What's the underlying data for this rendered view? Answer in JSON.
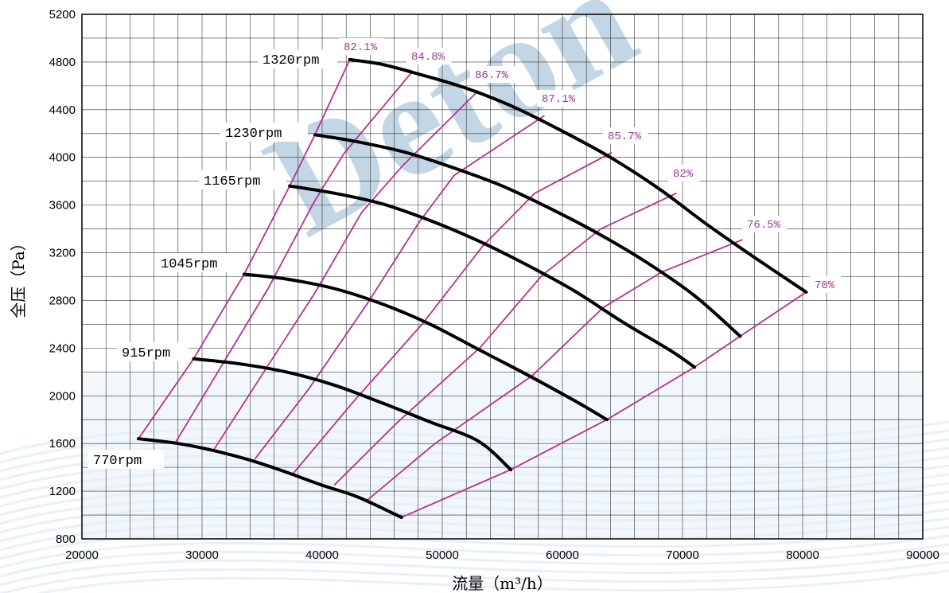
{
  "chart_data": {
    "type": "line",
    "title": "",
    "xlabel": "流量（m³/h）",
    "ylabel": "全压（Pa）",
    "xlim": [
      20000,
      90000
    ],
    "ylim": [
      800,
      5200
    ],
    "x_ticks": [
      20000,
      30000,
      40000,
      50000,
      60000,
      70000,
      80000,
      90000
    ],
    "y_ticks": [
      800,
      1200,
      1600,
      2000,
      2400,
      2800,
      3200,
      3600,
      4000,
      4400,
      4800,
      5200
    ],
    "grid": true,
    "watermark": "Deton",
    "colors": {
      "speed_curve": "#000000",
      "efficiency_line": "#b5318f",
      "efficiency_label": "#9b3a8f",
      "watermark": "#b9cfe2",
      "background_wave": "#e3edf6"
    },
    "speed_curves": [
      {
        "label": "1320rpm",
        "points": [
          [
            42300,
            4820
          ],
          [
            45000,
            4780
          ],
          [
            48000,
            4700
          ],
          [
            52000,
            4580
          ],
          [
            56000,
            4420
          ],
          [
            60000,
            4220
          ],
          [
            64000,
            4000
          ],
          [
            68000,
            3740
          ],
          [
            72000,
            3440
          ],
          [
            76000,
            3160
          ],
          [
            80300,
            2870
          ]
        ]
      },
      {
        "label": "1230rpm",
        "points": [
          [
            39400,
            4190
          ],
          [
            43000,
            4130
          ],
          [
            47000,
            4040
          ],
          [
            51000,
            3910
          ],
          [
            55000,
            3760
          ],
          [
            59000,
            3570
          ],
          [
            63000,
            3360
          ],
          [
            67000,
            3120
          ],
          [
            71000,
            2840
          ],
          [
            74800,
            2500
          ]
        ]
      },
      {
        "label": "1165rpm",
        "points": [
          [
            37300,
            3760
          ],
          [
            41000,
            3700
          ],
          [
            45000,
            3610
          ],
          [
            49000,
            3470
          ],
          [
            53000,
            3300
          ],
          [
            57000,
            3100
          ],
          [
            61000,
            2880
          ],
          [
            65000,
            2620
          ],
          [
            69000,
            2380
          ],
          [
            71000,
            2240
          ]
        ]
      },
      {
        "label": "1045rpm",
        "points": [
          [
            33500,
            3020
          ],
          [
            37000,
            2980
          ],
          [
            41000,
            2900
          ],
          [
            45000,
            2770
          ],
          [
            49000,
            2600
          ],
          [
            53000,
            2390
          ],
          [
            57000,
            2180
          ],
          [
            61000,
            1960
          ],
          [
            63700,
            1800
          ]
        ]
      },
      {
        "label": "915rpm",
        "points": [
          [
            29300,
            2310
          ],
          [
            33000,
            2270
          ],
          [
            37000,
            2200
          ],
          [
            41000,
            2090
          ],
          [
            45000,
            1940
          ],
          [
            49000,
            1780
          ],
          [
            53000,
            1620
          ],
          [
            55700,
            1380
          ]
        ]
      },
      {
        "label": "770rpm",
        "points": [
          [
            24700,
            1640
          ],
          [
            28000,
            1600
          ],
          [
            31000,
            1540
          ],
          [
            34000,
            1460
          ],
          [
            37000,
            1360
          ],
          [
            40000,
            1250
          ],
          [
            43000,
            1150
          ],
          [
            46600,
            980
          ]
        ]
      }
    ],
    "efficiency_lines": [
      {
        "label": "82.1%",
        "points": [
          [
            24700,
            1640
          ],
          [
            29300,
            2310
          ],
          [
            33500,
            3020
          ],
          [
            37300,
            3760
          ],
          [
            39400,
            4190
          ],
          [
            42300,
            4820
          ]
        ]
      },
      {
        "label": "84.8%",
        "points": [
          [
            27800,
            1610
          ],
          [
            31200,
            2180
          ],
          [
            35500,
            2900
          ],
          [
            39300,
            3620
          ],
          [
            41800,
            4030
          ],
          [
            47500,
            4720
          ]
        ]
      },
      {
        "label": "86.7%",
        "points": [
          [
            31000,
            1550
          ],
          [
            34700,
            2130
          ],
          [
            39500,
            2880
          ],
          [
            43300,
            3540
          ],
          [
            46700,
            3930
          ],
          [
            53000,
            4560
          ]
        ]
      },
      {
        "label": "87.1%",
        "points": [
          [
            34400,
            1470
          ],
          [
            38900,
            2060
          ],
          [
            43800,
            2780
          ],
          [
            48100,
            3460
          ],
          [
            51000,
            3850
          ],
          [
            58500,
            4350
          ]
        ]
      },
      {
        "label": "85.7%",
        "points": [
          [
            37600,
            1350
          ],
          [
            42500,
            1940
          ],
          [
            48400,
            2610
          ],
          [
            53400,
            3260
          ],
          [
            57700,
            3700
          ],
          [
            64100,
            4040
          ]
        ]
      },
      {
        "label": "82%",
        "points": [
          [
            41000,
            1250
          ],
          [
            46300,
            1780
          ],
          [
            53200,
            2410
          ],
          [
            58300,
            3010
          ],
          [
            63200,
            3400
          ],
          [
            69500,
            3700
          ]
        ]
      },
      {
        "label": "76.5%",
        "points": [
          [
            43700,
            1120
          ],
          [
            49400,
            1600
          ],
          [
            57500,
            2170
          ],
          [
            63400,
            2740
          ],
          [
            68300,
            3040
          ],
          [
            75000,
            3310
          ]
        ]
      },
      {
        "label": "70%",
        "points": [
          [
            46600,
            980
          ],
          [
            55700,
            1380
          ],
          [
            63700,
            1800
          ],
          [
            71000,
            2240
          ],
          [
            74800,
            2500
          ],
          [
            80300,
            2870
          ]
        ]
      }
    ]
  }
}
